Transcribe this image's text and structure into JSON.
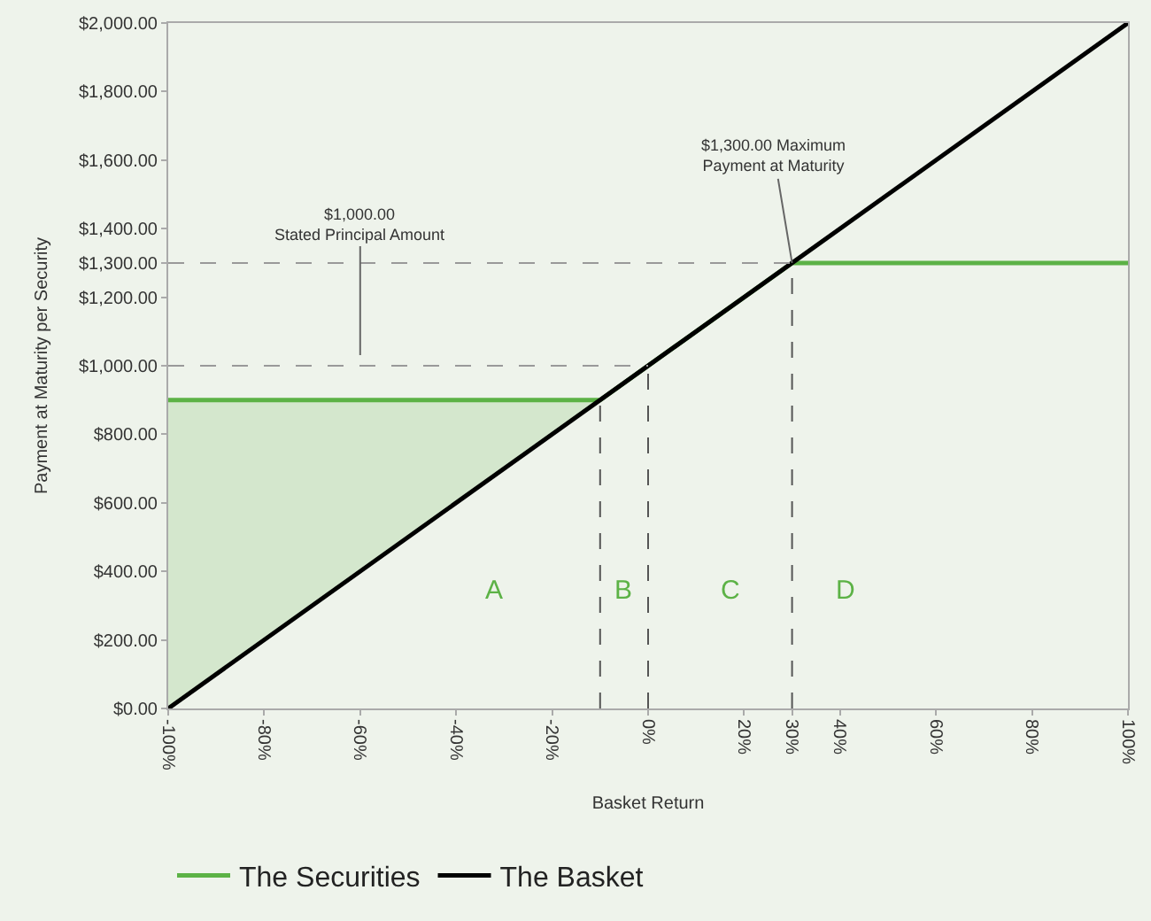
{
  "chart_data": {
    "type": "line",
    "xlabel": "Basket Return",
    "ylabel": "Payment at Maturity per Security",
    "xlim": [
      -100,
      100
    ],
    "ylim": [
      0,
      2000
    ],
    "xticks": [
      {
        "value": -100,
        "label": "-100%"
      },
      {
        "value": -80,
        "label": "-80%"
      },
      {
        "value": -60,
        "label": "-60%"
      },
      {
        "value": -40,
        "label": "-40%"
      },
      {
        "value": -20,
        "label": "-20%"
      },
      {
        "value": 0,
        "label": "0%"
      },
      {
        "value": 20,
        "label": "20%"
      },
      {
        "value": 30,
        "label": "30%"
      },
      {
        "value": 40,
        "label": "40%"
      },
      {
        "value": 60,
        "label": "60%"
      },
      {
        "value": 80,
        "label": "80%"
      },
      {
        "value": 100,
        "label": "100%"
      }
    ],
    "yticks": [
      {
        "value": 0,
        "label": "$0.00"
      },
      {
        "value": 200,
        "label": "$200.00"
      },
      {
        "value": 400,
        "label": "$400.00"
      },
      {
        "value": 600,
        "label": "$600.00"
      },
      {
        "value": 800,
        "label": "$800.00"
      },
      {
        "value": 1000,
        "label": "$1,000.00"
      },
      {
        "value": 1200,
        "label": "$1,200.00"
      },
      {
        "value": 1300,
        "label": "$1,300.00"
      },
      {
        "value": 1400,
        "label": "$1,400.00"
      },
      {
        "value": 1600,
        "label": "$1,600.00"
      },
      {
        "value": 1800,
        "label": "$1,800.00"
      },
      {
        "value": 2000,
        "label": "$2,000.00"
      }
    ],
    "series": [
      {
        "name": "The Securities",
        "color": "#5cb246",
        "x": [
          -100,
          -10,
          30,
          100
        ],
        "values": [
          900,
          900,
          1300,
          1300
        ],
        "lower": [
          0,
          900,
          null,
          null
        ],
        "upper": [
          900,
          900,
          null,
          null
        ]
      },
      {
        "name": "The Basket",
        "color": "#000000",
        "x": [
          -100,
          100
        ],
        "values": [
          0,
          2000
        ]
      }
    ],
    "ref_lines": [
      {
        "axis": "y",
        "value": 1000,
        "line_style": "dashed",
        "color": "#999999"
      },
      {
        "axis": "y",
        "value": 1300,
        "line_style": "dashed",
        "color": "#999999"
      },
      {
        "axis": "x",
        "value": -10,
        "line_style": "dashed",
        "color": "#555555"
      },
      {
        "axis": "x",
        "value": 0,
        "line_style": "dashed",
        "color": "#555555"
      },
      {
        "axis": "x",
        "value": 30,
        "line_style": "dashed",
        "color": "#555555"
      }
    ],
    "annotations": [
      {
        "text": "$1,000.00\nStated Principal Amount",
        "x": -60,
        "y": 1000
      },
      {
        "text": "$1,300.00 Maximum\nPayment at Maturity",
        "x": 30,
        "y": 1300
      },
      "A",
      "B",
      "C",
      "D"
    ],
    "grid": false,
    "legend": "bottom",
    "marker": "none",
    "line_style": "solid"
  }
}
